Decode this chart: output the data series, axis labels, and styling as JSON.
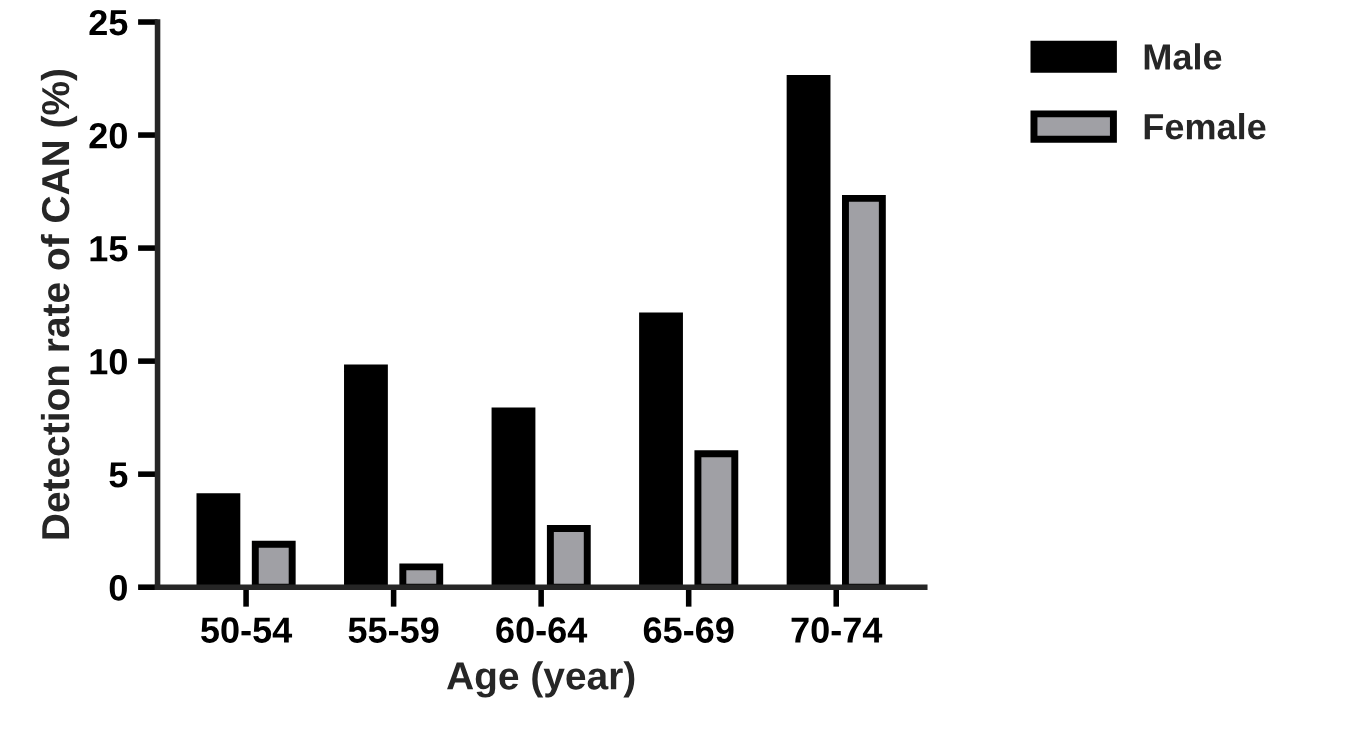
{
  "chart_data": {
    "type": "bar",
    "xlabel": "Age (year)",
    "ylabel": "Detection rate of CAN (%)",
    "categories": [
      "50-54",
      "55-59",
      "60-64",
      "65-69",
      "70-74"
    ],
    "series": [
      {
        "name": "Male",
        "color": "#000000",
        "values": [
          4.0,
          9.7,
          7.8,
          12.0,
          22.5
        ]
      },
      {
        "name": "Female",
        "color": "#a0a0a5",
        "values": [
          1.9,
          0.9,
          2.6,
          5.9,
          17.2
        ]
      }
    ],
    "ylim": [
      0,
      25
    ],
    "yticks": [
      0,
      5,
      10,
      15,
      20,
      25
    ],
    "grid": false,
    "legend": "top right"
  }
}
